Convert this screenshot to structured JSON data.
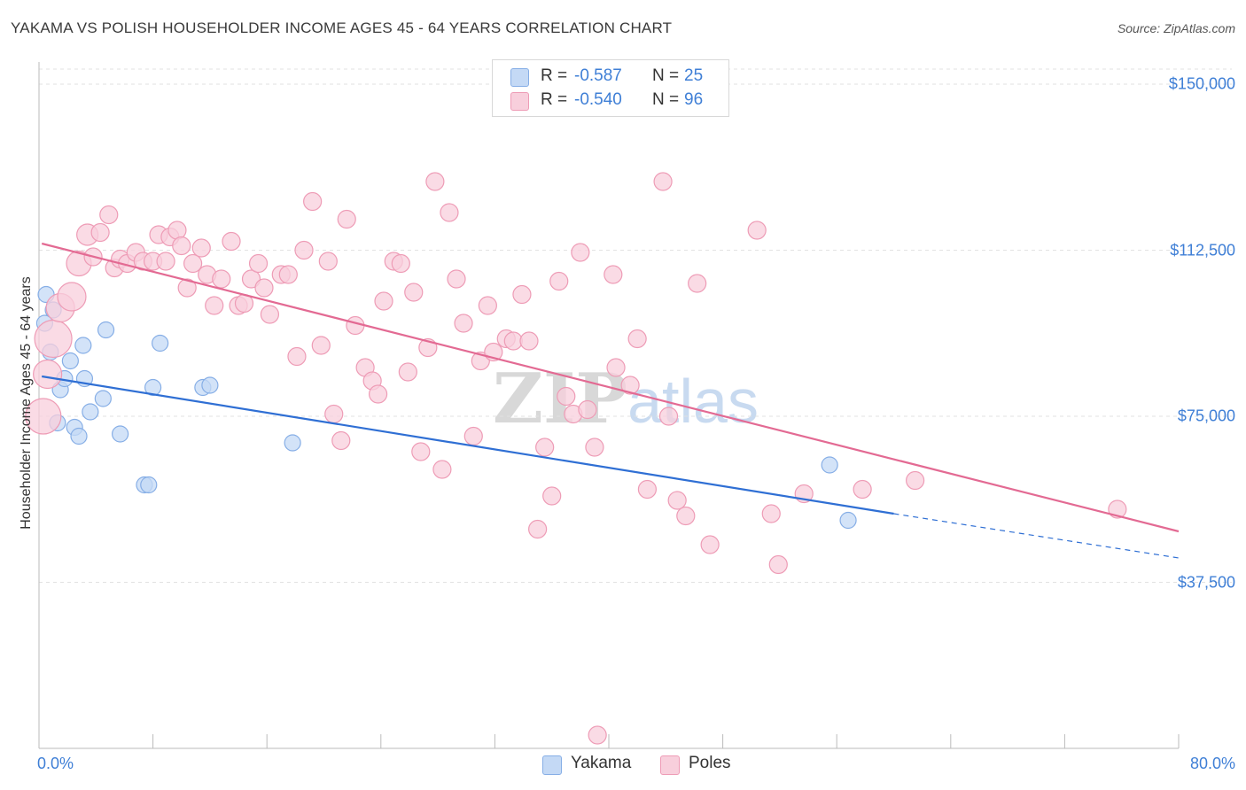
{
  "title": "YAKAMA VS POLISH HOUSEHOLDER INCOME AGES 45 - 64 YEARS CORRELATION CHART",
  "source": "Source: ZipAtlas.com",
  "watermark": {
    "zip": "ZIP",
    "atlas": "atlas"
  },
  "colors": {
    "yakama_fill": "#c4d9f5",
    "yakama_stroke": "#86aee6",
    "yakama_line": "#2f6fd4",
    "poles_fill": "#f8cfdc",
    "poles_stroke": "#ee9cb6",
    "poles_line": "#e36a93",
    "grid": "#e2e2e2",
    "tick_label": "#3f7fd6"
  },
  "legend": {
    "rows": [
      {
        "r_label": "R =",
        "r_value": "-0.587",
        "n_label": "N =",
        "n_value": "25"
      },
      {
        "r_label": "R =",
        "r_value": "-0.540",
        "n_label": "N =",
        "n_value": "96"
      }
    ],
    "series_names": [
      "Yakama",
      "Poles"
    ]
  },
  "chart_data": {
    "type": "scatter",
    "ylabel": "Householder Income Ages 45 - 64 years",
    "xlim": [
      0,
      80
    ],
    "ylim": [
      0,
      155000
    ],
    "x_tick_labels": [
      "0.0%",
      "80.0%"
    ],
    "y_ticks": [
      {
        "value": 37500,
        "label": "$37,500"
      },
      {
        "value": 75000,
        "label": "$75,000"
      },
      {
        "value": 112500,
        "label": "$112,500"
      },
      {
        "value": 150000,
        "label": "$150,000"
      }
    ],
    "series": [
      {
        "name": "Yakama",
        "r": -0.587,
        "n": 25,
        "trend": {
          "x0": 0.2,
          "y0": 84000,
          "x1": 60,
          "y1": 53000,
          "x_dash_end": 80,
          "y_dash_end": 43000
        },
        "points": [
          [
            0.4,
            96000
          ],
          [
            0.5,
            102500
          ],
          [
            0.8,
            89500
          ],
          [
            1.0,
            99000
          ],
          [
            1.3,
            73500
          ],
          [
            1.5,
            81000
          ],
          [
            1.8,
            83500
          ],
          [
            2.2,
            87500
          ],
          [
            2.5,
            72500
          ],
          [
            2.8,
            70500
          ],
          [
            3.2,
            83500
          ],
          [
            3.1,
            91000
          ],
          [
            3.6,
            76000
          ],
          [
            4.5,
            79000
          ],
          [
            4.7,
            94500
          ],
          [
            5.7,
            71000
          ],
          [
            7.4,
            59500
          ],
          [
            7.7,
            59500
          ],
          [
            8.0,
            81500
          ],
          [
            8.5,
            91500
          ],
          [
            11.5,
            81500
          ],
          [
            12.0,
            82000
          ],
          [
            17.8,
            69000
          ],
          [
            55.5,
            64000
          ],
          [
            56.8,
            51500
          ]
        ]
      },
      {
        "name": "Poles",
        "r": -0.54,
        "n": 96,
        "trend": {
          "x0": 0.2,
          "y0": 114000,
          "x1": 80,
          "y1": 49000
        },
        "points": [
          [
            0.3,
            75000
          ],
          [
            0.6,
            84500
          ],
          [
            1.0,
            92500
          ],
          [
            1.5,
            99500
          ],
          [
            2.3,
            102000
          ],
          [
            2.8,
            109500
          ],
          [
            3.4,
            116000
          ],
          [
            3.8,
            111000
          ],
          [
            4.3,
            116500
          ],
          [
            4.9,
            120500
          ],
          [
            5.3,
            108500
          ],
          [
            5.7,
            110500
          ],
          [
            6.2,
            109500
          ],
          [
            6.8,
            112000
          ],
          [
            7.3,
            110000
          ],
          [
            8.0,
            110000
          ],
          [
            8.4,
            116000
          ],
          [
            8.9,
            110000
          ],
          [
            9.2,
            115500
          ],
          [
            9.7,
            117000
          ],
          [
            10.0,
            113500
          ],
          [
            10.4,
            104000
          ],
          [
            10.8,
            109500
          ],
          [
            11.4,
            113000
          ],
          [
            11.8,
            107000
          ],
          [
            12.3,
            100000
          ],
          [
            12.8,
            106000
          ],
          [
            13.5,
            114500
          ],
          [
            14.0,
            100000
          ],
          [
            14.4,
            100500
          ],
          [
            14.9,
            106000
          ],
          [
            15.4,
            109500
          ],
          [
            15.8,
            104000
          ],
          [
            16.2,
            98000
          ],
          [
            17.0,
            107000
          ],
          [
            17.5,
            107000
          ],
          [
            18.1,
            88500
          ],
          [
            18.6,
            112500
          ],
          [
            19.2,
            123500
          ],
          [
            19.8,
            91000
          ],
          [
            20.3,
            110000
          ],
          [
            20.7,
            75500
          ],
          [
            21.2,
            69500
          ],
          [
            21.6,
            119500
          ],
          [
            22.2,
            95500
          ],
          [
            22.9,
            86000
          ],
          [
            23.4,
            83000
          ],
          [
            23.8,
            80000
          ],
          [
            24.2,
            101000
          ],
          [
            24.9,
            110000
          ],
          [
            25.4,
            109500
          ],
          [
            25.9,
            85000
          ],
          [
            26.3,
            103000
          ],
          [
            26.8,
            67000
          ],
          [
            27.3,
            90500
          ],
          [
            27.8,
            128000
          ],
          [
            28.3,
            63000
          ],
          [
            28.8,
            121000
          ],
          [
            29.3,
            106000
          ],
          [
            29.8,
            96000
          ],
          [
            30.5,
            70500
          ],
          [
            31.0,
            87500
          ],
          [
            31.5,
            100000
          ],
          [
            31.9,
            89500
          ],
          [
            32.8,
            92500
          ],
          [
            33.3,
            92000
          ],
          [
            33.9,
            102500
          ],
          [
            34.4,
            92000
          ],
          [
            35.0,
            49500
          ],
          [
            35.5,
            68000
          ],
          [
            36.0,
            57000
          ],
          [
            36.5,
            105500
          ],
          [
            37.0,
            79500
          ],
          [
            37.5,
            75500
          ],
          [
            38.0,
            112000
          ],
          [
            38.5,
            76500
          ],
          [
            39.0,
            68000
          ],
          [
            40.3,
            107000
          ],
          [
            41.5,
            82000
          ],
          [
            42.0,
            92500
          ],
          [
            42.7,
            58500
          ],
          [
            43.8,
            128000
          ],
          [
            44.8,
            56000
          ],
          [
            45.4,
            52500
          ],
          [
            46.2,
            105000
          ],
          [
            47.1,
            46000
          ],
          [
            50.4,
            117000
          ],
          [
            51.4,
            53000
          ],
          [
            51.9,
            41500
          ],
          [
            53.7,
            57500
          ],
          [
            57.8,
            58500
          ],
          [
            61.5,
            60500
          ],
          [
            75.7,
            54000
          ],
          [
            40.5,
            86000
          ],
          [
            44.2,
            75000
          ],
          [
            39.2,
            3000
          ]
        ]
      }
    ]
  }
}
